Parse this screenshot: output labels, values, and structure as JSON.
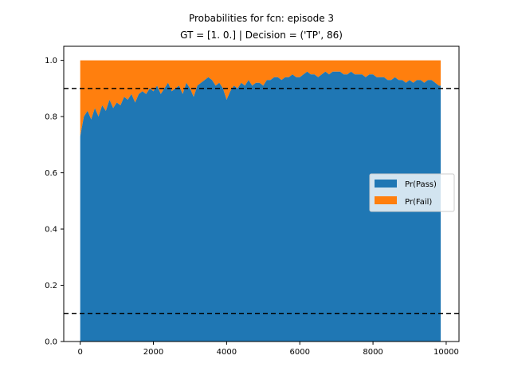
{
  "chart_data": {
    "type": "area",
    "title": "Probabilities for fcn: episode 3",
    "subtitle": "GT = [1. 0.] | Decision = ('TP', 86)",
    "xlabel": "",
    "ylabel": "",
    "xlim": [
      -450,
      10350
    ],
    "ylim": [
      0,
      1.05
    ],
    "x_ticks": [
      0,
      2000,
      4000,
      6000,
      8000,
      10000
    ],
    "x_tick_labels": [
      "0",
      "2000",
      "4000",
      "6000",
      "8000",
      "10000"
    ],
    "y_ticks": [
      0.0,
      0.2,
      0.4,
      0.6,
      0.8,
      1.0
    ],
    "y_tick_labels": [
      "0.0",
      "0.2",
      "0.4",
      "0.6",
      "0.8",
      "1.0"
    ],
    "x": [
      0,
      100,
      200,
      300,
      400,
      500,
      600,
      700,
      800,
      900,
      1000,
      1100,
      1200,
      1300,
      1400,
      1500,
      1600,
      1700,
      1800,
      1900,
      2000,
      2100,
      2200,
      2300,
      2400,
      2500,
      2600,
      2700,
      2800,
      2900,
      3000,
      3100,
      3200,
      3300,
      3400,
      3500,
      3600,
      3700,
      3800,
      3900,
      4000,
      4100,
      4200,
      4300,
      4400,
      4500,
      4600,
      4700,
      4800,
      4900,
      5000,
      5100,
      5200,
      5300,
      5400,
      5500,
      5600,
      5700,
      5800,
      5900,
      6000,
      6100,
      6200,
      6300,
      6400,
      6500,
      6600,
      6700,
      6800,
      6900,
      7000,
      7100,
      7200,
      7300,
      7400,
      7500,
      7600,
      7700,
      7800,
      7900,
      8000,
      8100,
      8200,
      8300,
      8400,
      8500,
      8600,
      8700,
      8800,
      8900,
      9000,
      9100,
      9200,
      9300,
      9400,
      9500,
      9600,
      9700,
      9800,
      9850
    ],
    "series": [
      {
        "name": "Pr(Pass)",
        "color": "#1f77b4",
        "values": [
          0.73,
          0.8,
          0.82,
          0.79,
          0.83,
          0.8,
          0.84,
          0.82,
          0.86,
          0.83,
          0.85,
          0.84,
          0.87,
          0.86,
          0.88,
          0.85,
          0.88,
          0.89,
          0.88,
          0.9,
          0.89,
          0.91,
          0.88,
          0.9,
          0.92,
          0.89,
          0.9,
          0.91,
          0.88,
          0.92,
          0.9,
          0.87,
          0.91,
          0.92,
          0.93,
          0.94,
          0.93,
          0.91,
          0.92,
          0.9,
          0.86,
          0.89,
          0.91,
          0.9,
          0.92,
          0.91,
          0.93,
          0.91,
          0.92,
          0.92,
          0.91,
          0.93,
          0.93,
          0.94,
          0.94,
          0.93,
          0.94,
          0.94,
          0.95,
          0.94,
          0.94,
          0.95,
          0.96,
          0.95,
          0.95,
          0.94,
          0.95,
          0.96,
          0.95,
          0.96,
          0.96,
          0.96,
          0.95,
          0.95,
          0.96,
          0.95,
          0.95,
          0.95,
          0.94,
          0.95,
          0.95,
          0.94,
          0.94,
          0.94,
          0.93,
          0.93,
          0.94,
          0.93,
          0.93,
          0.92,
          0.93,
          0.92,
          0.93,
          0.93,
          0.92,
          0.93,
          0.93,
          0.92,
          0.91,
          0.91
        ]
      },
      {
        "name": "Pr(Fail)",
        "color": "#ff7f0e",
        "note_fill": "stacked to 1.0"
      }
    ],
    "thresholds": [
      0.9,
      0.1
    ],
    "threshold_style": "dashed black",
    "legend": {
      "placement": "center-right",
      "entries": [
        "Pr(Pass)",
        "Pr(Fail)"
      ]
    },
    "grid": false
  }
}
